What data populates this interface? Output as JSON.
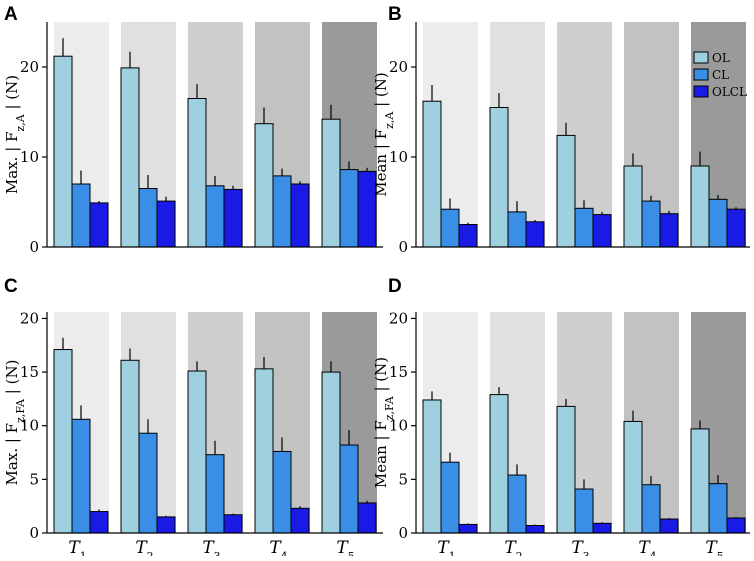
{
  "colors": {
    "series": [
      "#9fd0e0",
      "#3a8ee6",
      "#1a1ae6"
    ],
    "backgrounds": [
      "#ececec",
      "#e0e0e0",
      "#cfcfcf",
      "#c2c2c2",
      "#9a9a9a"
    ]
  },
  "chart_data": [
    {
      "type": "bar",
      "panel": "A",
      "ylabel": "Max. | F_{z,A} | (N)",
      "ylabel_parts": {
        "pre": "Max. | F",
        "sub": "z,A",
        "post": " | (N)"
      },
      "ylim": [
        0,
        25
      ],
      "yticks": [
        0,
        10,
        20
      ],
      "categories": [
        "T1",
        "T2",
        "T3",
        "T4",
        "T5"
      ],
      "category_labels": [
        {
          "base": "T",
          "sub": "1"
        },
        {
          "base": "T",
          "sub": "2"
        },
        {
          "base": "T",
          "sub": "3"
        },
        {
          "base": "T",
          "sub": "4"
        },
        {
          "base": "T",
          "sub": "5"
        }
      ],
      "series": [
        {
          "name": "OL",
          "values": [
            21.2,
            19.9,
            16.5,
            13.7,
            14.2
          ],
          "errors": [
            2.0,
            1.8,
            1.6,
            1.8,
            1.6
          ]
        },
        {
          "name": "CL",
          "values": [
            7.0,
            6.5,
            6.8,
            7.9,
            8.6
          ],
          "errors": [
            1.5,
            1.5,
            1.1,
            0.8,
            0.9
          ]
        },
        {
          "name": "OLCL",
          "values": [
            4.9,
            5.1,
            6.4,
            7.0,
            8.4
          ],
          "errors": [
            0.2,
            0.5,
            0.4,
            0.3,
            0.4
          ]
        }
      ],
      "show_legend": false,
      "show_xticks": false
    },
    {
      "type": "bar",
      "panel": "B",
      "ylabel": "Mean | F_{z,A} | (N)",
      "ylabel_parts": {
        "pre": "Mean | F",
        "sub": "z,A",
        "post": " | (N)"
      },
      "ylim": [
        0,
        25
      ],
      "yticks": [
        0,
        10,
        20
      ],
      "categories": [
        "T1",
        "T2",
        "T3",
        "T4",
        "T5"
      ],
      "category_labels": [
        {
          "base": "T",
          "sub": "1"
        },
        {
          "base": "T",
          "sub": "2"
        },
        {
          "base": "T",
          "sub": "3"
        },
        {
          "base": "T",
          "sub": "4"
        },
        {
          "base": "T",
          "sub": "5"
        }
      ],
      "series": [
        {
          "name": "OL",
          "values": [
            16.2,
            15.5,
            12.4,
            9.0,
            9.0
          ],
          "errors": [
            1.8,
            1.6,
            1.4,
            1.4,
            1.6
          ]
        },
        {
          "name": "CL",
          "values": [
            4.2,
            3.9,
            4.3,
            5.1,
            5.3
          ],
          "errors": [
            1.2,
            1.2,
            0.9,
            0.6,
            0.5
          ]
        },
        {
          "name": "OLCL",
          "values": [
            2.5,
            2.8,
            3.6,
            3.7,
            4.2
          ],
          "errors": [
            0.2,
            0.2,
            0.3,
            0.3,
            0.2
          ]
        }
      ],
      "legend": [
        "OL",
        "CL",
        "OLCL"
      ],
      "legend_position": "top-right",
      "show_legend": true,
      "show_xticks": false
    },
    {
      "type": "bar",
      "panel": "C",
      "ylabel": "Max. | F_{z,FA} | (N)",
      "ylabel_parts": {
        "pre": "Max. | F",
        "sub": "z,FA",
        "post": " | (N)"
      },
      "ylim": [
        0,
        20.6
      ],
      "yticks": [
        0,
        5,
        10,
        15,
        20
      ],
      "categories": [
        "T1",
        "T2",
        "T3",
        "T4",
        "T5"
      ],
      "category_labels": [
        {
          "base": "T",
          "sub": "1"
        },
        {
          "base": "T",
          "sub": "2"
        },
        {
          "base": "T",
          "sub": "3"
        },
        {
          "base": "T",
          "sub": "4"
        },
        {
          "base": "T",
          "sub": "5"
        }
      ],
      "series": [
        {
          "name": "OL",
          "values": [
            17.1,
            16.1,
            15.1,
            15.3,
            15.0
          ],
          "errors": [
            1.1,
            1.1,
            0.9,
            1.1,
            1.0
          ]
        },
        {
          "name": "CL",
          "values": [
            10.6,
            9.3,
            7.3,
            7.6,
            8.2
          ],
          "errors": [
            1.3,
            1.3,
            1.3,
            1.3,
            1.4
          ]
        },
        {
          "name": "OLCL",
          "values": [
            2.0,
            1.5,
            1.7,
            2.3,
            2.8
          ],
          "errors": [
            0.2,
            0.1,
            0.1,
            0.2,
            0.2
          ]
        }
      ],
      "show_legend": false,
      "show_xticks": true
    },
    {
      "type": "bar",
      "panel": "D",
      "ylabel": "Mean | F_{z,FA} | (N)",
      "ylabel_parts": {
        "pre": "Mean | F",
        "sub": "z,FA",
        "post": " | (N)"
      },
      "ylim": [
        0,
        20.6
      ],
      "yticks": [
        0,
        5,
        10,
        15,
        20
      ],
      "categories": [
        "T1",
        "T2",
        "T3",
        "T4",
        "T5"
      ],
      "category_labels": [
        {
          "base": "T",
          "sub": "1"
        },
        {
          "base": "T",
          "sub": "2"
        },
        {
          "base": "T",
          "sub": "3"
        },
        {
          "base": "T",
          "sub": "4"
        },
        {
          "base": "T",
          "sub": "5"
        }
      ],
      "series": [
        {
          "name": "OL",
          "values": [
            12.4,
            12.9,
            11.8,
            10.4,
            9.7
          ],
          "errors": [
            0.8,
            0.7,
            0.7,
            1.0,
            0.8
          ]
        },
        {
          "name": "CL",
          "values": [
            6.6,
            5.4,
            4.1,
            4.5,
            4.6
          ],
          "errors": [
            0.9,
            1.0,
            0.9,
            0.8,
            0.8
          ]
        },
        {
          "name": "OLCL",
          "values": [
            0.8,
            0.7,
            0.9,
            1.3,
            1.4
          ],
          "errors": [
            0.1,
            0.1,
            0.1,
            0.1,
            0.1
          ]
        }
      ],
      "show_legend": false,
      "show_xticks": true
    }
  ]
}
